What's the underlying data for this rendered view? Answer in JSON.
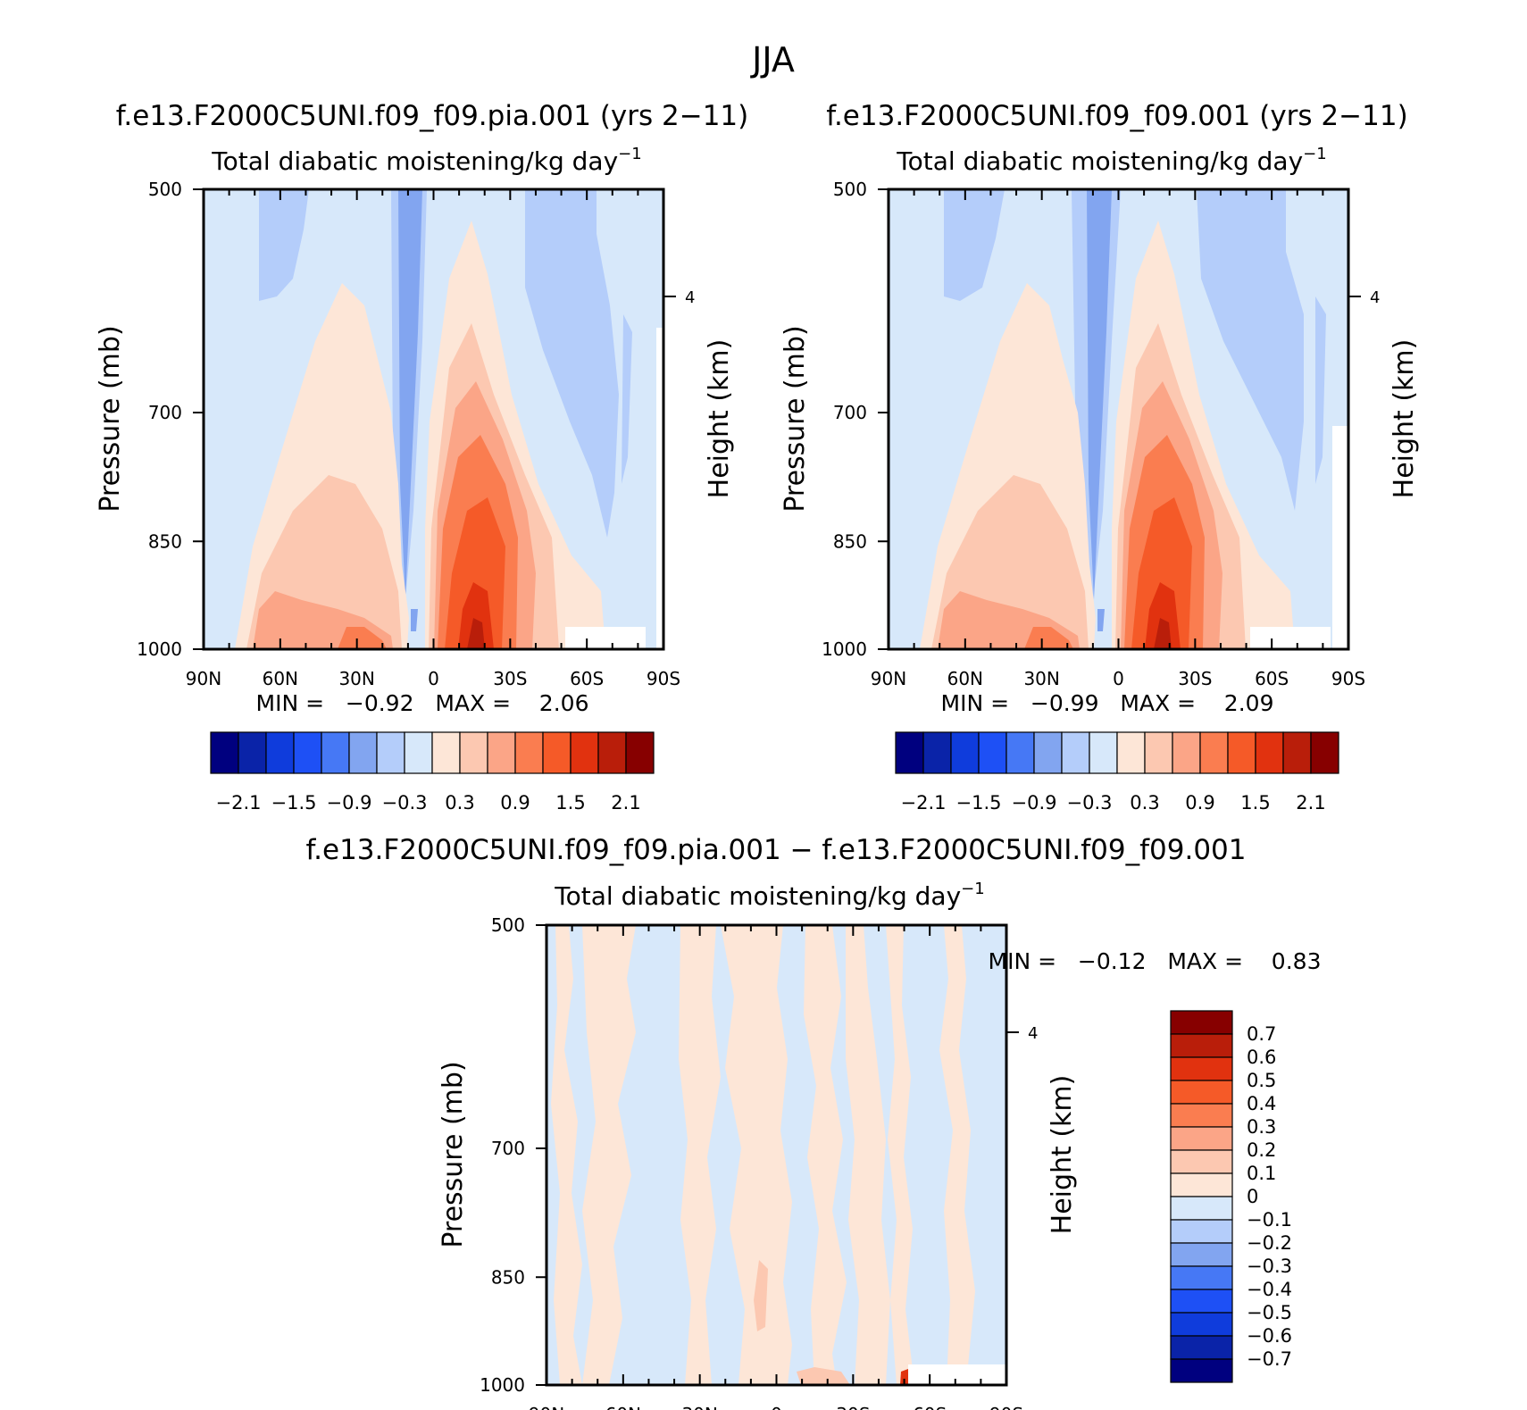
{
  "figure": {
    "title": "JJA"
  },
  "panels": [
    {
      "case_title": "f.e13.F2000C5UNI.f09_f09.pia.001 (yrs 2−11)",
      "variable_title": "Total diabatic moistening/kg day",
      "unit_exponent": "−1",
      "ylabel_left": "Pressure (mb)",
      "ylabel_right": "Height (km)",
      "stats_text": "MIN =   −0.92   MAX =    2.06"
    },
    {
      "case_title": "f.e13.F2000C5UNI.f09_f09.001 (yrs 2−11)",
      "variable_title": "Total diabatic moistening/kg day",
      "unit_exponent": "−1",
      "ylabel_left": "Pressure (mb)",
      "ylabel_right": "Height (km)",
      "stats_text": "MIN =   −0.99   MAX =    2.09"
    },
    {
      "case_title": "f.e13.F2000C5UNI.f09_f09.pia.001 − f.e13.F2000C5UNI.f09_f09.001",
      "variable_title": "Total diabatic moistening/kg day",
      "unit_exponent": "−1",
      "ylabel_left": "Pressure (mb)",
      "ylabel_right": "Height (km)",
      "stats_text": "MIN =   −0.12   MAX =    0.83"
    }
  ],
  "axes": {
    "x_ticks": [
      "90N",
      "60N",
      "30N",
      "0",
      "30S",
      "60S",
      "90S"
    ],
    "y_ticks": [
      "500",
      "700",
      "850",
      "1000"
    ],
    "y_right_ticks": [
      "4"
    ]
  },
  "colorbar_top": {
    "colors": [
      "#00007f",
      "#0a23a8",
      "#0f3cdc",
      "#1e50f5",
      "#4678f5",
      "#82a5f0",
      "#b4cdfa",
      "#d7e8fa",
      "#fde6d7",
      "#fcc8b1",
      "#fba587",
      "#fa7d50",
      "#f55a28",
      "#e1320f",
      "#b91e0a",
      "#870000"
    ],
    "labels": [
      "−2.1",
      "−1.5",
      "−0.9",
      "−0.3",
      "0.3",
      "0.9",
      "1.5",
      "2.1"
    ]
  },
  "colorbar_diff": {
    "colors_top_to_bottom": [
      "#870000",
      "#b91e0a",
      "#e1320f",
      "#f55a28",
      "#fa7d50",
      "#fba587",
      "#fcc8b1",
      "#fde6d7",
      "#d7e8fa",
      "#b4cdfa",
      "#82a5f0",
      "#4678f5",
      "#1e50f5",
      "#0f3cdc",
      "#0a23a8",
      "#00007f"
    ],
    "labels": [
      "0.7",
      "0.6",
      "0.5",
      "0.4",
      "0.3",
      "0.2",
      "0.1",
      "0",
      "−0.1",
      "−0.2",
      "−0.3",
      "−0.4",
      "−0.5",
      "−0.6",
      "−0.7"
    ]
  },
  "chart_data": [
    {
      "type": "heatmap",
      "title": "f.e13.F2000C5UNI.f09_f09.pia.001 (yrs 2−11)",
      "subtitle": "Total diabatic moistening/kg day⁻¹",
      "xlabel": "",
      "ylabel": "Pressure (mb)",
      "ylabel_right": "Height (km)",
      "x_range": [
        90,
        -90
      ],
      "y_range": [
        500,
        1000
      ],
      "y_log": true,
      "min": -0.92,
      "max": 2.06,
      "contour_levels": [
        -2.1,
        -1.8,
        -1.5,
        -1.2,
        -0.9,
        -0.6,
        -0.3,
        0,
        0.3,
        0.6,
        0.9,
        1.2,
        1.5,
        1.8,
        2.1
      ]
    },
    {
      "type": "heatmap",
      "title": "f.e13.F2000C5UNI.f09_f09.001 (yrs 2−11)",
      "subtitle": "Total diabatic moistening/kg day⁻¹",
      "xlabel": "",
      "ylabel": "Pressure (mb)",
      "ylabel_right": "Height (km)",
      "x_range": [
        90,
        -90
      ],
      "y_range": [
        500,
        1000
      ],
      "y_log": true,
      "min": -0.99,
      "max": 2.09,
      "contour_levels": [
        -2.1,
        -1.8,
        -1.5,
        -1.2,
        -0.9,
        -0.6,
        -0.3,
        0,
        0.3,
        0.6,
        0.9,
        1.2,
        1.5,
        1.8,
        2.1
      ]
    },
    {
      "type": "heatmap",
      "title": "f.e13.F2000C5UNI.f09_f09.pia.001 − f.e13.F2000C5UNI.f09_f09.001",
      "subtitle": "Total diabatic moistening/kg day⁻¹",
      "xlabel": "",
      "ylabel": "Pressure (mb)",
      "ylabel_right": "Height (km)",
      "x_range": [
        90,
        -90
      ],
      "y_range": [
        500,
        1000
      ],
      "y_log": true,
      "min": -0.12,
      "max": 0.83,
      "contour_levels": [
        -0.7,
        -0.6,
        -0.5,
        -0.4,
        -0.3,
        -0.2,
        -0.1,
        0,
        0.1,
        0.2,
        0.3,
        0.4,
        0.5,
        0.6,
        0.7
      ]
    }
  ]
}
